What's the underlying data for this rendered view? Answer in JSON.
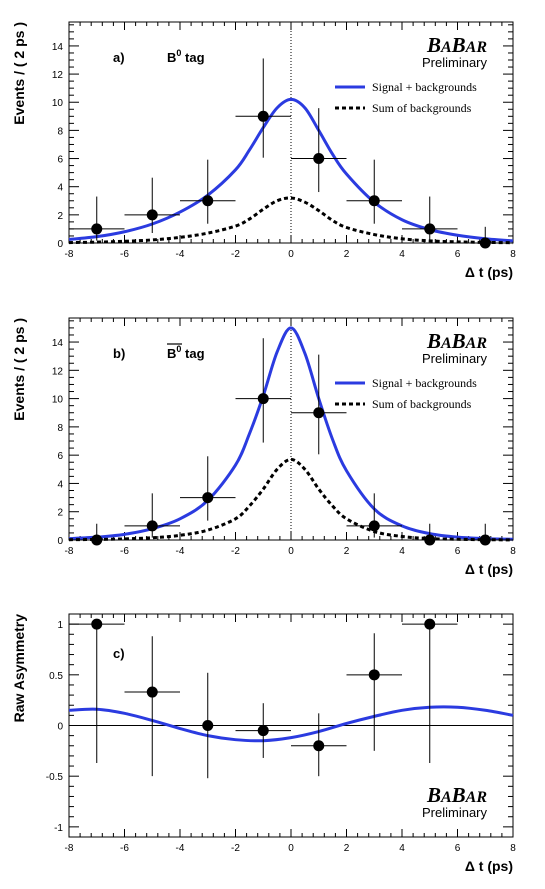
{
  "colors": {
    "signal": "#2b3be0",
    "background": "#000000",
    "points": "#000000",
    "frame": "#000000"
  },
  "logo": {
    "ba1": "B",
    "ba2": "A",
    "ba3": "B",
    "ba4": "AR",
    "preliminary": "Preliminary"
  },
  "legend": {
    "signal": "Signal + backgrounds",
    "backgrounds": "Sum of backgrounds"
  },
  "chart_data": [
    {
      "id": "a",
      "type": "scatter",
      "panel_label": "a)",
      "tag_label": "B",
      "tag_sup": "0",
      "tag_word": "tag",
      "tag_bar": false,
      "xlabel": "Δ t (ps)",
      "ylabel": "Events / ( 2 ps )",
      "xlim": [
        -8,
        8
      ],
      "ylim": [
        0,
        15.7
      ],
      "x_ticks": [
        -8,
        -6,
        -4,
        -2,
        0,
        2,
        4,
        6,
        8
      ],
      "y_ticks": [
        0,
        2,
        4,
        6,
        8,
        10,
        12,
        14
      ],
      "points": {
        "x": [
          -7,
          -5,
          -3,
          -1,
          1,
          3,
          5,
          7
        ],
        "y": [
          1,
          2,
          3,
          9,
          6,
          3,
          1,
          0
        ],
        "yerr_low": [
          0.83,
          1.29,
          1.63,
          2.94,
          2.38,
          1.63,
          0.83,
          0
        ],
        "yerr_high": [
          2.3,
          2.64,
          2.92,
          4.11,
          3.58,
          2.92,
          2.3,
          1.15
        ],
        "xerr": 1
      },
      "series": [
        {
          "name": "Signal + backgrounds",
          "style": "solid",
          "x": [
            -8,
            -7,
            -6,
            -5,
            -4,
            -3,
            -2,
            -1.5,
            -1,
            -0.5,
            0,
            0.5,
            1,
            1.5,
            2,
            3,
            4,
            5,
            6,
            7,
            8
          ],
          "y": [
            0.25,
            0.45,
            0.8,
            1.35,
            2.2,
            3.4,
            5.2,
            6.6,
            8.2,
            9.6,
            10.2,
            9.6,
            8.0,
            6.3,
            4.9,
            2.9,
            1.65,
            0.95,
            0.55,
            0.3,
            0.15
          ]
        },
        {
          "name": "Sum of backgrounds",
          "style": "dashed",
          "x": [
            -8,
            -7,
            -6,
            -5,
            -4,
            -3,
            -2,
            -1.5,
            -1,
            -0.5,
            0,
            0.5,
            1,
            1.5,
            2,
            3,
            4,
            5,
            6,
            7,
            8
          ],
          "y": [
            0.03,
            0.06,
            0.12,
            0.22,
            0.4,
            0.7,
            1.2,
            1.7,
            2.4,
            3.0,
            3.2,
            2.9,
            2.3,
            1.6,
            1.1,
            0.6,
            0.3,
            0.15,
            0.08,
            0.04,
            0.02
          ]
        }
      ],
      "vline": 0,
      "hline": null,
      "legend": true
    },
    {
      "id": "b",
      "type": "scatter",
      "panel_label": "b)",
      "tag_label": "B",
      "tag_sup": "0",
      "tag_word": "tag",
      "tag_bar": true,
      "xlabel": "Δ t (ps)",
      "ylabel": "Events / ( 2 ps )",
      "xlim": [
        -8,
        8
      ],
      "ylim": [
        0,
        15.7
      ],
      "x_ticks": [
        -8,
        -6,
        -4,
        -2,
        0,
        2,
        4,
        6,
        8
      ],
      "y_ticks": [
        0,
        2,
        4,
        6,
        8,
        10,
        12,
        14
      ],
      "points": {
        "x": [
          -7,
          -5,
          -3,
          -1,
          1,
          3,
          5,
          7
        ],
        "y": [
          0,
          1,
          3,
          10,
          9,
          1,
          0,
          0
        ],
        "yerr_low": [
          0,
          0.83,
          1.63,
          3.11,
          2.94,
          0.83,
          0,
          0
        ],
        "yerr_high": [
          1.15,
          2.3,
          2.92,
          4.27,
          4.11,
          2.3,
          1.15,
          1.15
        ],
        "xerr": 1
      },
      "series": [
        {
          "name": "Signal + backgrounds",
          "style": "solid",
          "x": [
            -8,
            -7,
            -6,
            -5,
            -4,
            -3,
            -2,
            -1.5,
            -1,
            -0.5,
            0,
            0.5,
            1,
            1.5,
            2,
            3,
            4,
            5,
            6,
            7,
            8
          ],
          "y": [
            0.1,
            0.2,
            0.4,
            0.8,
            1.5,
            2.8,
            5.3,
            7.5,
            10.2,
            13.3,
            15.0,
            13.2,
            10.0,
            7.1,
            4.9,
            2.2,
            1.0,
            0.45,
            0.2,
            0.1,
            0.05
          ]
        },
        {
          "name": "Sum of backgrounds",
          "style": "dashed",
          "x": [
            -8,
            -7,
            -6,
            -5,
            -4,
            -3,
            -2,
            -1.5,
            -1,
            -0.5,
            0,
            0.5,
            1,
            1.5,
            2,
            3,
            4,
            5,
            6,
            7,
            8
          ],
          "y": [
            0.02,
            0.04,
            0.08,
            0.16,
            0.33,
            0.7,
            1.5,
            2.4,
            3.6,
            5.0,
            5.7,
            5.0,
            3.6,
            2.4,
            1.5,
            0.6,
            0.25,
            0.1,
            0.05,
            0.02,
            0.01
          ]
        }
      ],
      "vline": 0,
      "hline": null,
      "legend": true
    },
    {
      "id": "c",
      "type": "scatter",
      "panel_label": "c)",
      "xlabel": "Δ t (ps)",
      "ylabel": "Raw Asymmetry",
      "xlim": [
        -8,
        8
      ],
      "ylim": [
        -1.1,
        1.1
      ],
      "x_ticks": [
        -8,
        -6,
        -4,
        -2,
        0,
        2,
        4,
        6,
        8
      ],
      "y_ticks": [
        -1,
        -0.5,
        0,
        0.5,
        1
      ],
      "points": {
        "x": [
          -7,
          -5,
          -3,
          -1,
          1,
          3,
          5
        ],
        "y": [
          1,
          0.33,
          0,
          -0.05,
          -0.2,
          0.5,
          1
        ],
        "yerr_low": [
          1.37,
          0.83,
          0.52,
          0.27,
          0.3,
          0.75,
          1.37
        ],
        "yerr_high": [
          0,
          0.55,
          0.52,
          0.27,
          0.32,
          0.41,
          0
        ],
        "xerr": 1
      },
      "series": [
        {
          "name": "",
          "style": "solid",
          "x": [
            -8,
            -7,
            -6,
            -5,
            -4,
            -3,
            -2,
            -1,
            0,
            1,
            2,
            3,
            4,
            5,
            6,
            7,
            8
          ],
          "y": [
            0.15,
            0.16,
            0.12,
            0.05,
            -0.03,
            -0.1,
            -0.14,
            -0.15,
            -0.12,
            -0.06,
            0.02,
            0.09,
            0.15,
            0.18,
            0.18,
            0.15,
            0.1
          ]
        }
      ],
      "vline": null,
      "hline": 0,
      "legend": false
    }
  ]
}
